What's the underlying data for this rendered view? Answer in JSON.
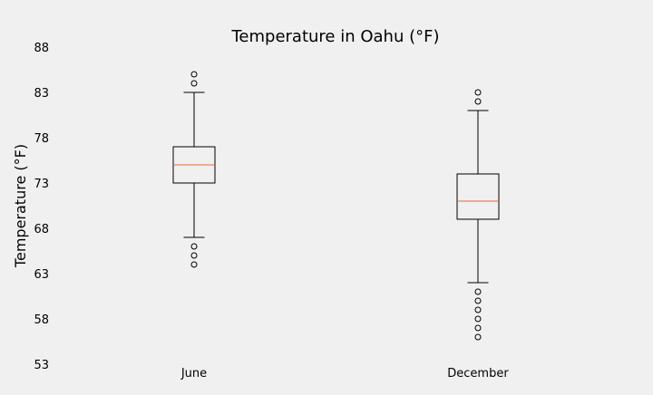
{
  "chart_data": {
    "type": "box",
    "title": "Temperature in Oahu (°F)",
    "xlabel": "",
    "ylabel": "Temperature (°F)",
    "ylim": [
      53,
      88
    ],
    "yticks": [
      53,
      58,
      63,
      68,
      73,
      78,
      83,
      88
    ],
    "grid": false,
    "categories": [
      "June",
      "December"
    ],
    "boxes": [
      {
        "category": "June",
        "whisker_low": 67,
        "q1": 73,
        "median": 75,
        "q3": 77,
        "whisker_high": 83,
        "outliers": [
          64,
          65,
          66,
          84,
          85
        ]
      },
      {
        "category": "December",
        "whisker_low": 62,
        "q1": 69,
        "median": 71,
        "q3": 74,
        "whisker_high": 81,
        "outliers": [
          56,
          57,
          58,
          59,
          60,
          61,
          82,
          83
        ]
      }
    ],
    "colors": {
      "background": "#f0f0f0",
      "box": "#000000",
      "median": "#e8643c",
      "flier": "#000000"
    }
  }
}
